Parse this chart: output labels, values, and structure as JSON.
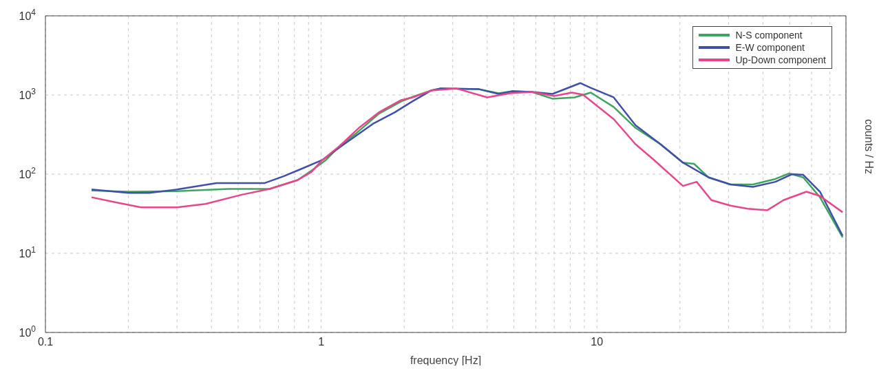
{
  "chart_data": {
    "type": "line",
    "xlabel": "frequency [Hz]",
    "ylabel": "counts  / Hz",
    "log": "xy",
    "grid": true,
    "legend": "top right",
    "marker": "none",
    "line_style": "solid",
    "xlim": [
      0.1,
      80
    ],
    "ylim": [
      1,
      10000
    ],
    "xticks": [
      0.1,
      {
        "value": 0.2,
        "label": null
      },
      {
        "value": 0.3,
        "label": null
      },
      {
        "value": 0.4,
        "label": null
      },
      {
        "value": 0.5,
        "label": null
      },
      {
        "value": 0.6,
        "label": null
      },
      {
        "value": 0.7,
        "label": null
      },
      {
        "value": 0.8,
        "label": null
      },
      {
        "value": 0.9,
        "label": null
      },
      1,
      {
        "value": 2,
        "label": null
      },
      {
        "value": 3,
        "label": null
      },
      {
        "value": 4,
        "label": null
      },
      {
        "value": 5,
        "label": null
      },
      {
        "value": 6,
        "label": null
      },
      {
        "value": 7,
        "label": null
      },
      {
        "value": 8,
        "label": null
      },
      {
        "value": 9,
        "label": null
      },
      10,
      {
        "value": 20,
        "label": null
      },
      {
        "value": 30,
        "label": null
      },
      {
        "value": 40,
        "label": null
      },
      {
        "value": 50,
        "label": null
      },
      {
        "value": 60,
        "label": null
      },
      {
        "value": 70,
        "label": null
      }
    ],
    "yticks": [
      {
        "value": 1,
        "label": "10$^{0}$"
      },
      {
        "value": 10,
        "label": "10$^{1}$"
      },
      {
        "value": 100,
        "label": "10$^{2}$"
      },
      {
        "value": 1000,
        "label": "10$^{3}$"
      },
      {
        "value": 10000,
        "label": "10$^{4}$"
      }
    ],
    "series": [
      {
        "name": "N-S component",
        "color": "#3fa55e",
        "x": [
          0.147,
          0.2,
          0.3,
          0.46,
          0.65,
          0.82,
          0.92,
          1.04,
          1.17,
          1.34,
          1.62,
          1.95,
          2.19,
          2.5,
          2.7,
          3.74,
          4.4,
          4.95,
          5.8,
          6.9,
          8.3,
          9.5,
          11.5,
          13.8,
          17,
          20.5,
          22.5,
          25.4,
          30.5,
          36.8,
          44.4,
          49.8,
          56,
          64.4,
          77.8
        ],
        "values": [
          62,
          60,
          61,
          65,
          65,
          84,
          110,
          151,
          229,
          328,
          581,
          828,
          971,
          1137,
          1207,
          1183,
          1050,
          1115,
          1094,
          897,
          933,
          1072,
          707,
          384,
          239,
          140,
          135,
          91,
          74,
          74,
          87,
          102,
          91,
          51,
          15.9
        ]
      },
      {
        "name": "E-W component",
        "color": "#4050a8",
        "x": [
          0.147,
          0.2,
          0.238,
          0.3,
          0.417,
          0.622,
          0.73,
          0.84,
          1.01,
          1.17,
          1.54,
          1.85,
          2.14,
          2.5,
          2.7,
          3.74,
          4.4,
          4.95,
          5.8,
          6.9,
          8.7,
          9.5,
          11.5,
          13.8,
          17,
          20.5,
          25.4,
          30.5,
          36.8,
          44.4,
          51,
          56,
          64.4,
          77.8
        ],
        "values": [
          64,
          58,
          58,
          64,
          77,
          77,
          94,
          115,
          151,
          220,
          432,
          604,
          828,
          1137,
          1207,
          1183,
          1030,
          1115,
          1094,
          1030,
          1413,
          1230,
          933,
          415,
          239,
          140,
          91,
          74,
          69,
          80,
          100,
          98,
          60,
          16.6
        ]
      },
      {
        "name": "Up-Down component",
        "color": "#e8468c",
        "x": [
          0.147,
          0.18,
          0.222,
          0.3,
          0.381,
          0.515,
          0.65,
          0.82,
          0.92,
          1.01,
          1.17,
          1.37,
          1.62,
          1.95,
          2.19,
          2.5,
          3.1,
          4,
          4.84,
          5.8,
          7,
          8.1,
          8.9,
          11.5,
          13.8,
          15.9,
          20.5,
          23,
          26,
          30.5,
          35.2,
          41.5,
          47.5,
          57.5,
          64.4,
          77.8
        ],
        "values": [
          51,
          44,
          38,
          38,
          42,
          55,
          65,
          84,
          106,
          151,
          229,
          384,
          604,
          862,
          952,
          1137,
          1207,
          933,
          1050,
          1094,
          971,
          1072,
          1009,
          496,
          239,
          157,
          71,
          80,
          47,
          40,
          36.5,
          35,
          47,
          60,
          53,
          33
        ]
      }
    ]
  }
}
